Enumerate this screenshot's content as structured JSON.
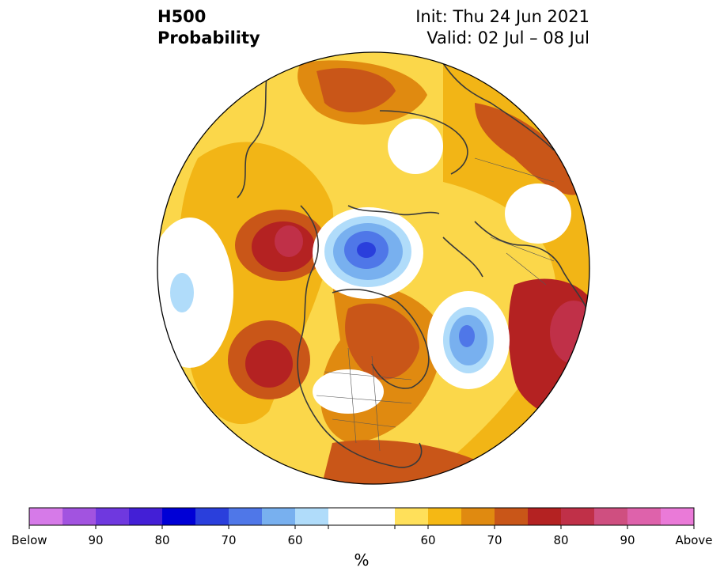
{
  "header": {
    "variable": "H500",
    "product": "Probability",
    "init": "Init: Thu 24 Jun 2021",
    "valid": "Valid: 02 Jul – 08 Jul"
  },
  "colorbar": {
    "colors": [
      "#d67ae8",
      "#a253e0",
      "#6f38df",
      "#431fd6",
      "#0000d6",
      "#2a3fdc",
      "#4f77e8",
      "#78b0ef",
      "#b0dcfa",
      "#ffffff",
      "#ffffff",
      "#ffe05a",
      "#f5b814",
      "#e08a10",
      "#c95618",
      "#b42222",
      "#c03048",
      "#cf4f80",
      "#de62ab",
      "#ea7ad8"
    ],
    "tick_labels": [
      "Below",
      "90",
      "80",
      "70",
      "60",
      "60",
      "70",
      "80",
      "90",
      "Above"
    ],
    "units": "%"
  },
  "map_colors": {
    "background": "#fbd74a",
    "ocean_outline": "#3a3a3a",
    "circle_outline": "#000000"
  }
}
